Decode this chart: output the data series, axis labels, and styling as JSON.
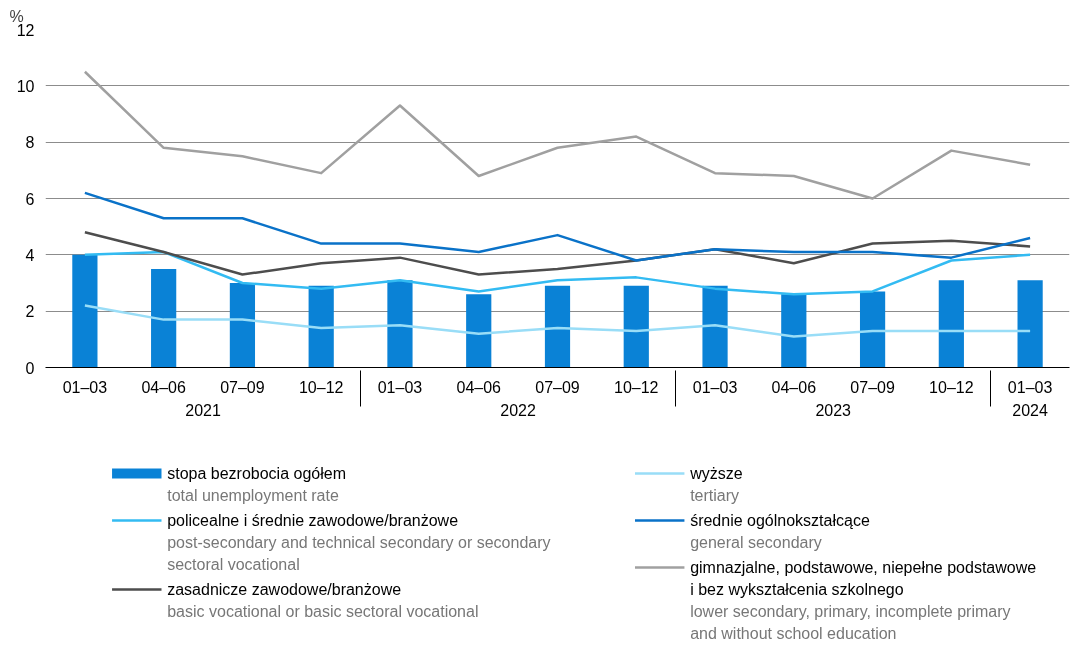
{
  "chart_data": {
    "type": "line",
    "ylabel": "%",
    "categories": [
      "01–03",
      "04–06",
      "07–09",
      "10–12",
      "01–03",
      "04–06",
      "07–09",
      "10–12",
      "01–03",
      "04–06",
      "07–09",
      "10–12",
      "01–03"
    ],
    "annotations": [
      "2021",
      "2022",
      "2023",
      "2024"
    ],
    "ylim": [
      0,
      12
    ],
    "yticks": [
      0,
      2,
      4,
      6,
      8,
      10,
      12
    ],
    "grid": "y",
    "legend": "bottom",
    "series": [
      {
        "type": "bar",
        "name": "stopa bezrobocia ogółem\ntotal unemployment rate",
        "color": "#0a82d6",
        "values": [
          4.0,
          3.5,
          3.0,
          2.9,
          3.1,
          2.6,
          2.9,
          2.9,
          2.9,
          2.6,
          2.7,
          3.1,
          3.1
        ]
      },
      {
        "name": "policealne i średnie zawodowe/branżowe\npost-secondary and technical secondary or secondary sectoral vocational",
        "color": "#33bbf2",
        "values": [
          4.0,
          4.1,
          3.0,
          2.8,
          3.1,
          2.7,
          3.1,
          3.2,
          2.8,
          2.6,
          2.7,
          3.8,
          4.0
        ]
      },
      {
        "name": "zasadnicze zawodowe/branżowe\nbasic vocational or basic sectoral vocational",
        "color": "#4d4d4d",
        "values": [
          4.8,
          4.1,
          3.3,
          3.7,
          3.9,
          3.3,
          3.5,
          3.8,
          4.2,
          3.7,
          4.4,
          4.5,
          4.3
        ]
      },
      {
        "name": "wyższe\ntertiary",
        "color": "#99ddf7",
        "values": [
          2.2,
          1.7,
          1.7,
          1.4,
          1.5,
          1.2,
          1.4,
          1.3,
          1.5,
          1.1,
          1.3,
          1.3,
          1.3
        ]
      },
      {
        "name": "średnie ogólnokształcące\ngeneral secondary",
        "color": "#0a72c8",
        "values": [
          6.2,
          5.3,
          5.3,
          4.4,
          4.4,
          4.1,
          4.7,
          3.8,
          4.2,
          4.1,
          4.1,
          3.9,
          4.6
        ]
      },
      {
        "name": "gimnazjalne, podstawowe, niepełne podstawowe i bez wykształcenia szkolnego\nlower secondary, primary, incomplete primary and without school education",
        "color": "#a0a0a0",
        "values": [
          10.5,
          7.8,
          7.5,
          6.9,
          9.3,
          6.8,
          7.8,
          8.2,
          6.9,
          6.8,
          6.0,
          7.7,
          7.2
        ]
      }
    ]
  }
}
